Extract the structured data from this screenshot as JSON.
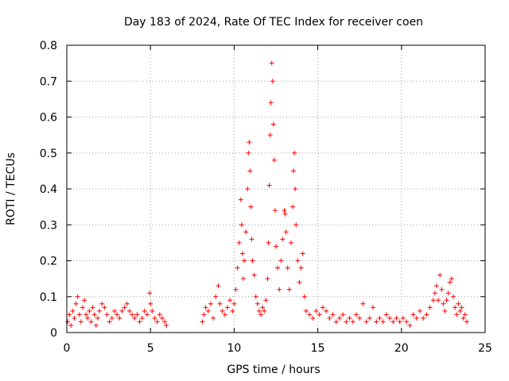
{
  "chart_data": {
    "type": "scatter",
    "title": "Day 183 of 2024, Rate Of TEC Index for receiver coen",
    "xlabel": "GPS time / hours",
    "ylabel": "ROTI / TECUs",
    "xlim": [
      0,
      25
    ],
    "ylim": [
      0,
      0.8
    ],
    "x_ticks": [
      "0",
      "5",
      "10",
      "15",
      "20",
      "25"
    ],
    "y_ticks": [
      "0",
      "0.1",
      "0.2",
      "0.3",
      "0.4",
      "0.5",
      "0.6",
      "0.7",
      "0.8"
    ],
    "grid": true,
    "marker": "plus",
    "marker_color": "#ff0000",
    "series": [
      {
        "name": "ROTI",
        "points": [
          [
            0.05,
            0.03
          ],
          [
            0.15,
            0.05
          ],
          [
            0.25,
            0.02
          ],
          [
            0.35,
            0.06
          ],
          [
            0.45,
            0.04
          ],
          [
            0.55,
            0.08
          ],
          [
            0.65,
            0.1
          ],
          [
            0.75,
            0.05
          ],
          [
            0.85,
            0.03
          ],
          [
            0.95,
            0.07
          ],
          [
            1.05,
            0.09
          ],
          [
            1.15,
            0.05
          ],
          [
            1.25,
            0.04
          ],
          [
            1.35,
            0.06
          ],
          [
            1.45,
            0.03
          ],
          [
            1.55,
            0.07
          ],
          [
            1.65,
            0.05
          ],
          [
            1.75,
            0.02
          ],
          [
            1.85,
            0.04
          ],
          [
            1.95,
            0.06
          ],
          [
            2.1,
            0.08
          ],
          [
            2.25,
            0.07
          ],
          [
            2.4,
            0.05
          ],
          [
            2.55,
            0.03
          ],
          [
            2.7,
            0.04
          ],
          [
            2.85,
            0.06
          ],
          [
            3.0,
            0.05
          ],
          [
            3.15,
            0.04
          ],
          [
            3.3,
            0.06
          ],
          [
            3.45,
            0.07
          ],
          [
            3.6,
            0.08
          ],
          [
            3.75,
            0.06
          ],
          [
            3.9,
            0.05
          ],
          [
            4.05,
            0.04
          ],
          [
            4.2,
            0.05
          ],
          [
            4.35,
            0.03
          ],
          [
            4.5,
            0.04
          ],
          [
            4.65,
            0.06
          ],
          [
            4.8,
            0.05
          ],
          [
            4.95,
            0.11
          ],
          [
            5.0,
            0.08
          ],
          [
            5.1,
            0.06
          ],
          [
            5.25,
            0.04
          ],
          [
            5.4,
            0.03
          ],
          [
            5.55,
            0.05
          ],
          [
            5.7,
            0.04
          ],
          [
            5.85,
            0.03
          ],
          [
            5.95,
            0.02
          ],
          [
            8.1,
            0.03
          ],
          [
            8.2,
            0.05
          ],
          [
            8.3,
            0.07
          ],
          [
            8.45,
            0.06
          ],
          [
            8.6,
            0.08
          ],
          [
            8.75,
            0.04
          ],
          [
            8.9,
            0.1
          ],
          [
            9.05,
            0.13
          ],
          [
            9.15,
            0.08
          ],
          [
            9.3,
            0.06
          ],
          [
            9.45,
            0.05
          ],
          [
            9.6,
            0.07
          ],
          [
            9.75,
            0.09
          ],
          [
            9.9,
            0.06
          ],
          [
            10.0,
            0.08
          ],
          [
            10.1,
            0.12
          ],
          [
            10.2,
            0.18
          ],
          [
            10.3,
            0.25
          ],
          [
            10.4,
            0.37
          ],
          [
            10.45,
            0.3
          ],
          [
            10.5,
            0.22
          ],
          [
            10.55,
            0.15
          ],
          [
            10.6,
            0.2
          ],
          [
            10.7,
            0.28
          ],
          [
            10.8,
            0.4
          ],
          [
            10.85,
            0.5
          ],
          [
            10.9,
            0.53
          ],
          [
            10.95,
            0.45
          ],
          [
            11.0,
            0.35
          ],
          [
            11.05,
            0.26
          ],
          [
            11.1,
            0.2
          ],
          [
            11.2,
            0.16
          ],
          [
            11.3,
            0.1
          ],
          [
            11.4,
            0.08
          ],
          [
            11.5,
            0.06
          ],
          [
            11.6,
            0.05
          ],
          [
            11.7,
            0.07
          ],
          [
            11.8,
            0.06
          ],
          [
            11.9,
            0.09
          ],
          [
            12.0,
            0.15
          ],
          [
            12.05,
            0.25
          ],
          [
            12.1,
            0.41
          ],
          [
            12.15,
            0.55
          ],
          [
            12.2,
            0.64
          ],
          [
            12.25,
            0.75
          ],
          [
            12.3,
            0.7
          ],
          [
            12.35,
            0.58
          ],
          [
            12.4,
            0.48
          ],
          [
            12.45,
            0.34
          ],
          [
            12.5,
            0.24
          ],
          [
            12.6,
            0.18
          ],
          [
            12.7,
            0.12
          ],
          [
            12.8,
            0.2
          ],
          [
            12.9,
            0.26
          ],
          [
            13.0,
            0.34
          ],
          [
            13.05,
            0.33
          ],
          [
            13.1,
            0.28
          ],
          [
            13.2,
            0.18
          ],
          [
            13.3,
            0.12
          ],
          [
            13.4,
            0.25
          ],
          [
            13.5,
            0.35
          ],
          [
            13.55,
            0.45
          ],
          [
            13.6,
            0.5
          ],
          [
            13.65,
            0.4
          ],
          [
            13.7,
            0.3
          ],
          [
            13.8,
            0.2
          ],
          [
            13.9,
            0.14
          ],
          [
            14.0,
            0.18
          ],
          [
            14.1,
            0.22
          ],
          [
            14.2,
            0.1
          ],
          [
            14.3,
            0.06
          ],
          [
            14.5,
            0.05
          ],
          [
            14.7,
            0.04
          ],
          [
            14.9,
            0.06
          ],
          [
            15.1,
            0.05
          ],
          [
            15.3,
            0.07
          ],
          [
            15.5,
            0.06
          ],
          [
            15.7,
            0.04
          ],
          [
            15.9,
            0.05
          ],
          [
            16.1,
            0.03
          ],
          [
            16.3,
            0.04
          ],
          [
            16.5,
            0.05
          ],
          [
            16.7,
            0.03
          ],
          [
            16.9,
            0.04
          ],
          [
            17.1,
            0.03
          ],
          [
            17.3,
            0.05
          ],
          [
            17.5,
            0.04
          ],
          [
            17.7,
            0.08
          ],
          [
            17.9,
            0.03
          ],
          [
            18.1,
            0.04
          ],
          [
            18.3,
            0.07
          ],
          [
            18.5,
            0.03
          ],
          [
            18.7,
            0.04
          ],
          [
            18.9,
            0.03
          ],
          [
            19.1,
            0.05
          ],
          [
            19.3,
            0.04
          ],
          [
            19.5,
            0.03
          ],
          [
            19.7,
            0.04
          ],
          [
            19.9,
            0.03
          ],
          [
            20.1,
            0.04
          ],
          [
            20.3,
            0.03
          ],
          [
            20.5,
            0.02
          ],
          [
            20.7,
            0.05
          ],
          [
            20.9,
            0.04
          ],
          [
            21.1,
            0.06
          ],
          [
            21.3,
            0.04
          ],
          [
            21.5,
            0.05
          ],
          [
            21.7,
            0.07
          ],
          [
            21.9,
            0.09
          ],
          [
            22.0,
            0.11
          ],
          [
            22.1,
            0.13
          ],
          [
            22.2,
            0.09
          ],
          [
            22.3,
            0.16
          ],
          [
            22.4,
            0.12
          ],
          [
            22.5,
            0.08
          ],
          [
            22.6,
            0.06
          ],
          [
            22.7,
            0.09
          ],
          [
            22.8,
            0.11
          ],
          [
            22.9,
            0.14
          ],
          [
            23.0,
            0.15
          ],
          [
            23.1,
            0.1
          ],
          [
            23.2,
            0.07
          ],
          [
            23.3,
            0.05
          ],
          [
            23.4,
            0.08
          ],
          [
            23.5,
            0.06
          ],
          [
            23.6,
            0.07
          ],
          [
            23.7,
            0.04
          ],
          [
            23.8,
            0.05
          ],
          [
            23.9,
            0.03
          ]
        ]
      }
    ]
  }
}
